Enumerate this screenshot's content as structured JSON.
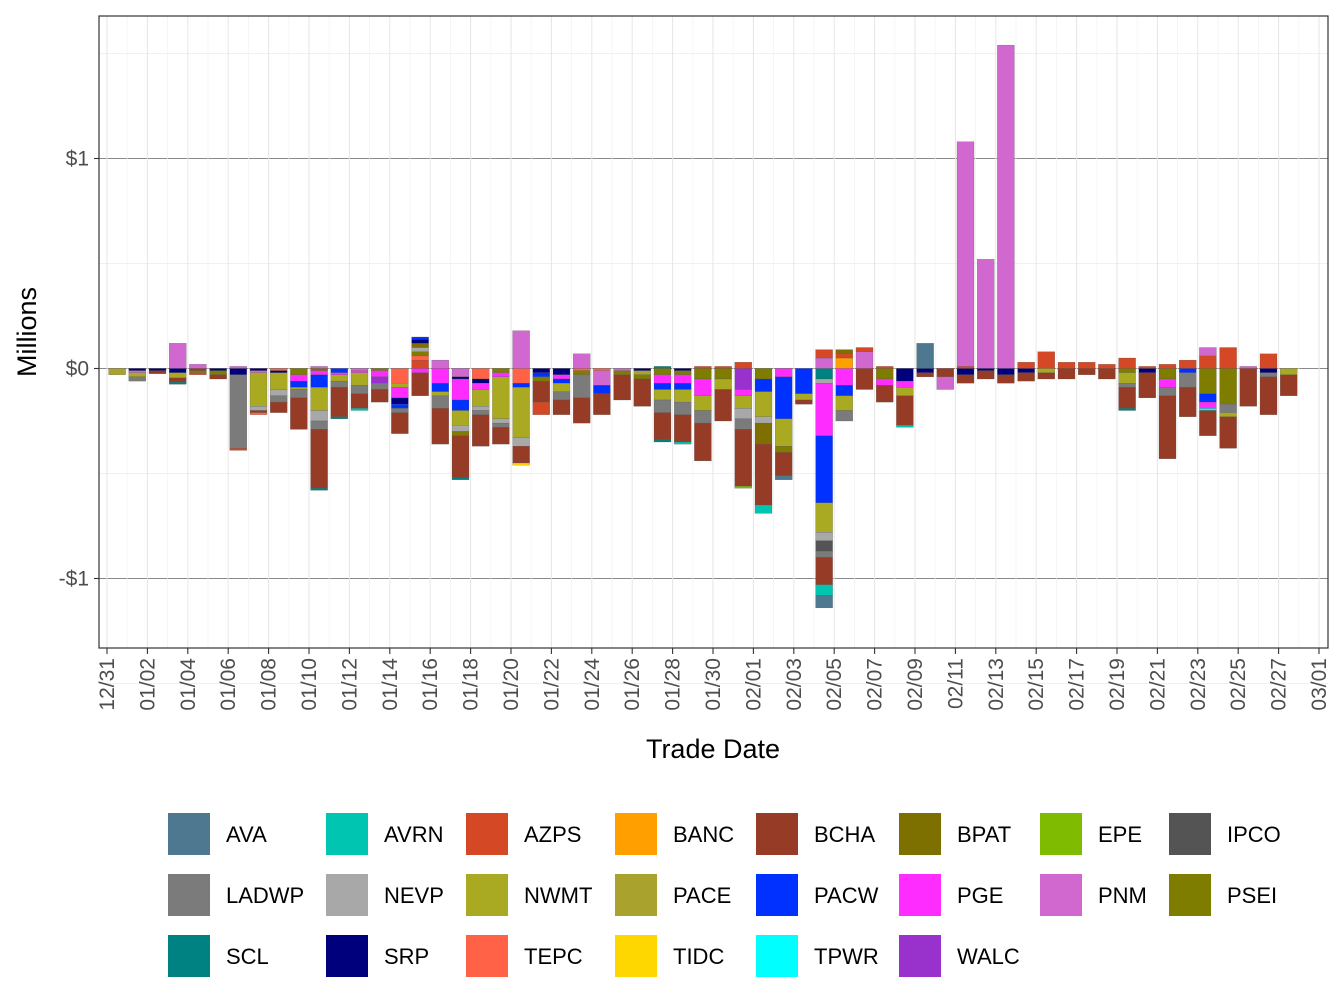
{
  "chart_data": {
    "type": "bar",
    "stacked": true,
    "xlabel": "Trade Date",
    "ylabel": "Millions",
    "ylim": [
      -1.34,
      1.68
    ],
    "y_ticks": [
      {
        "value": -1,
        "label": "-$1"
      },
      {
        "value": 0,
        "label": "$0"
      },
      {
        "value": 1,
        "label": "$1"
      }
    ],
    "x_ticks": [
      "12/31",
      "01/02",
      "01/04",
      "01/06",
      "01/08",
      "01/10",
      "01/12",
      "01/14",
      "01/16",
      "01/18",
      "01/20",
      "01/22",
      "01/24",
      "01/26",
      "01/28",
      "01/30",
      "02/01",
      "02/03",
      "02/05",
      "02/07",
      "02/09",
      "02/11",
      "02/13",
      "02/15",
      "02/17",
      "02/19",
      "02/21",
      "02/23",
      "02/25",
      "02/27",
      "03/01"
    ],
    "legend_position": "bottom",
    "colors": {
      "AVA": "#4e7890",
      "AVRN": "#00c6b1",
      "AZPS": "#d44826",
      "BANC": "#ffa000",
      "BCHA": "#963b25",
      "BPAT": "#7d7000",
      "EPE": "#7fbb00",
      "IPCO": "#545454",
      "LADWP": "#7b7b7b",
      "NEVP": "#a8a8a8",
      "NWMT": "#aaaa22",
      "PACE": "#a9a22d",
      "PACW": "#0031ff",
      "PGE": "#ff2cff",
      "PNM": "#d068cf",
      "PSEI": "#7e7d00",
      "SCL": "#008282",
      "SRP": "#00007c",
      "TEPC": "#ff6247",
      "TIDC": "#ffd700",
      "TPWR": "#00ffff",
      "WALC": "#9932cc"
    },
    "legend": [
      "AVA",
      "AVRN",
      "AZPS",
      "BANC",
      "BCHA",
      "BPAT",
      "EPE",
      "IPCO",
      "LADWP",
      "NEVP",
      "NWMT",
      "PACE",
      "PACW",
      "PGE",
      "PNM",
      "PSEI",
      "SCL",
      "SRP",
      "TEPC",
      "TIDC",
      "TPWR",
      "WALC"
    ],
    "days": [
      {
        "PACE": -0.03
      },
      {
        "SRP": -0.01,
        "PNM": -0.01,
        "NWMT": -0.02,
        "LADWP": -0.02
      },
      {
        "SRP": -0.01,
        "BCHA": -0.015
      },
      {
        "PNM": 0.12,
        "SRP": -0.02,
        "NWMT": -0.025,
        "BCHA": -0.02,
        "SCL": -0.01
      },
      {
        "PNM": 0.02,
        "BCHA": -0.01,
        "PSEI": -0.01,
        "AZPS": -0.01
      },
      {
        "SRP": -0.01,
        "PSEI": -0.02,
        "BCHA": -0.02
      },
      {
        "PNM": 0.01,
        "SRP": -0.03,
        "LADWP": -0.35,
        "AZPS": -0.01
      },
      {
        "SRP": -0.01,
        "PNM": -0.01,
        "NWMT": -0.16,
        "NEVP": -0.02,
        "BCHA": -0.01,
        "TEPC": -0.01
      },
      {
        "TEPC": -0.01,
        "SRP": -0.01,
        "NWMT": -0.08,
        "NEVP": -0.03,
        "LADWP": -0.03,
        "BCHA": -0.05
      },
      {
        "PSEI": -0.03,
        "PGE": -0.03,
        "PACW": -0.03,
        "NWMT": -0.01,
        "LADWP": -0.04,
        "BCHA": -0.15
      },
      {
        "PNM": 0.01,
        "BPAT": -0.01,
        "PGE": -0.02,
        "PACW": -0.06,
        "NWMT": -0.11,
        "NEVP": -0.05,
        "LADWP": -0.04,
        "BCHA": -0.28,
        "SCL": -0.01
      },
      {
        "PACW": -0.02,
        "PGE": -0.01,
        "NWMT": -0.03,
        "LADWP": -0.03,
        "BCHA": -0.14,
        "SCL": -0.01
      },
      {
        "PNM": -0.01,
        "PGE": -0.01,
        "NWMT": -0.06,
        "LADWP": -0.04,
        "BCHA": -0.07,
        "AVRN": -0.01
      },
      {
        "PSEI": -0.01,
        "PGE": -0.03,
        "WALC": -0.03,
        "LADWP": -0.03,
        "BCHA": -0.06
      },
      {
        "TEPC": -0.07,
        "NWMT": -0.02,
        "PGE": -0.05,
        "SRP": -0.03,
        "PACW": -0.02,
        "LADWP": -0.02,
        "BCHA": -0.1
      },
      {
        "AZPS": 0.04,
        "TEPC": 0.02,
        "PSEI": 0.02,
        "NEVP": 0.02,
        "BPAT": 0.02,
        "SRP": 0.02,
        "PACW": 0.01,
        "PGE": -0.02,
        "BCHA": -0.11
      },
      {
        "PNM": 0.04,
        "PGE": -0.07,
        "PACW": -0.04,
        "NWMT": -0.02,
        "LADWP": -0.06,
        "BCHA": -0.17
      },
      {
        "PNM": -0.04,
        "SRP": -0.01,
        "PGE": -0.1,
        "PACW": -0.05,
        "NWMT": -0.07,
        "NEVP": -0.03,
        "PSEI": -0.02,
        "BCHA": -0.2,
        "SCL": -0.01
      },
      {
        "TEPC": -0.05,
        "SRP": -0.02,
        "PGE": -0.03,
        "NWMT": -0.08,
        "NEVP": -0.02,
        "LADWP": -0.02,
        "BCHA": -0.15
      },
      {
        "PSEI": -0.02,
        "PGE": -0.02,
        "NWMT": -0.2,
        "NEVP": -0.02,
        "LADWP": -0.02,
        "BCHA": -0.08
      },
      {
        "PNM": 0.18,
        "TEPC": -0.07,
        "PACW": -0.02,
        "NWMT": -0.24,
        "NEVP": -0.04,
        "BCHA": -0.08,
        "TIDC": -0.01
      },
      {
        "SRP": -0.02,
        "PACW": -0.02,
        "PSEI": -0.02,
        "BCHA": -0.1,
        "AZPS": -0.06
      },
      {
        "SRP": -0.03,
        "PGE": -0.02,
        "PACW": -0.02,
        "NWMT": -0.04,
        "LADWP": -0.04,
        "BCHA": -0.07
      },
      {
        "PNM": 0.07,
        "TEPC": -0.01,
        "PSEI": -0.02,
        "LADWP": -0.11,
        "BCHA": -0.12
      },
      {
        "TEPC": -0.01,
        "PNM": -0.07,
        "PACW": -0.04,
        "BCHA": -0.1
      },
      {
        "PNM": -0.01,
        "PSEI": -0.02,
        "BCHA": -0.12
      },
      {
        "SRP": -0.01,
        "PACE": -0.02,
        "PSEI": -0.02,
        "BCHA": -0.13
      },
      {
        "SCL": 0.01,
        "PSEI": -0.03,
        "PGE": -0.04,
        "PACW": -0.03,
        "NWMT": -0.05,
        "LADWP": -0.06,
        "BCHA": -0.13,
        "SCL2": -0.01
      },
      {
        "SRP": -0.01,
        "PSEI": -0.02,
        "PGE": -0.04,
        "PACW": -0.03,
        "NWMT": -0.06,
        "LADWP": -0.06,
        "BCHA": -0.13,
        "AVRN": -0.01
      },
      {
        "AZPS": 0.01,
        "PSEI": -0.05,
        "PGE": -0.08,
        "NWMT": -0.07,
        "LADWP": -0.06,
        "BCHA": -0.18
      },
      {
        "AZPS": 0.01,
        "PSEI": -0.05,
        "NWMT": -0.05,
        "BCHA": -0.15
      },
      {
        "AZPS": 0.03,
        "WALC": -0.1,
        "PGE": -0.03,
        "NWMT": -0.06,
        "NEVP": -0.05,
        "LADWP": -0.05,
        "BCHA": -0.27,
        "EPE": -0.01
      },
      {
        "PSEI": -0.05,
        "PACW": -0.06,
        "NWMT": -0.12,
        "NEVP": -0.03,
        "BPAT": -0.1,
        "BCHA": -0.29,
        "AVRN": -0.04
      },
      {
        "PGE": -0.04,
        "PACW": -0.2,
        "NWMT": -0.13,
        "PSEI": -0.03,
        "BCHA": -0.11,
        "AVA": -0.02
      },
      {
        "PACW": -0.12,
        "NWMT": -0.03,
        "BCHA": -0.02
      },
      {
        "PNM": 0.05,
        "AZPS": 0.04,
        "SCL": -0.05,
        "NEVP": -0.02,
        "PGE": -0.25,
        "PACW": -0.32,
        "NWMT": -0.14,
        "NEVP2": -0.04,
        "IPCO": -0.05,
        "LADWP": -0.03,
        "BCHA": -0.13,
        "AVRN": -0.05,
        "AVA": -0.06
      },
      {
        "BANC": 0.05,
        "AZPS": 0.02,
        "BPAT": 0.02,
        "PGE": -0.08,
        "PACW": -0.05,
        "NWMT": -0.07,
        "LADWP": -0.05
      },
      {
        "PNM": 0.08,
        "AZPS": 0.02,
        "BCHA": -0.1
      },
      {
        "AZPS": 0.01,
        "PSEI": -0.05,
        "PGE": -0.03,
        "BCHA": -0.08
      },
      {
        "SRP": -0.06,
        "PGE": -0.03,
        "NWMT": -0.04,
        "BCHA": -0.14,
        "AVRN": -0.01
      },
      {
        "AVA": 0.12,
        "SRP": -0.02,
        "BCHA": -0.02
      },
      {
        "BCHA": -0.04,
        "PNM": -0.06
      },
      {
        "AZPS": 0.01,
        "PNM": 1.07,
        "SRP": -0.03,
        "BCHA": -0.04
      },
      {
        "PNM": 0.52,
        "SRP": -0.01,
        "BCHA": -0.04
      },
      {
        "PNM": 1.54,
        "SRP": -0.03,
        "BCHA": -0.04
      },
      {
        "AZPS": 0.03,
        "SRP": -0.02,
        "BCHA": -0.04
      },
      {
        "AZPS": 0.08,
        "NWMT": -0.02,
        "BCHA": -0.03
      },
      {
        "AZPS": 0.03,
        "BCHA": -0.05
      },
      {
        "AZPS": 0.03,
        "BCHA": -0.03
      },
      {
        "AZPS": 0.02,
        "BCHA": -0.05
      },
      {
        "AZPS": 0.05,
        "PSEI": -0.02,
        "NWMT": -0.05,
        "LADWP": -0.02,
        "BCHA": -0.1,
        "SCL": -0.01
      },
      {
        "AZPS": 0.01,
        "SRP": -0.02,
        "BCHA": -0.12
      },
      {
        "AZPS": 0.02,
        "PSEI": -0.05,
        "PGE": -0.04,
        "LADWP": -0.04,
        "BCHA": -0.3
      },
      {
        "AZPS": 0.04,
        "PACW": -0.02,
        "LADWP": -0.07,
        "BCHA": -0.14
      },
      {
        "AZPS": 0.06,
        "PNM": 0.04,
        "PSEI": -0.12,
        "PACW": -0.04,
        "PGE": -0.03,
        "TPWR": -0.01,
        "BCHA": -0.12
      },
      {
        "AZPS": 0.1,
        "PSEI": -0.17,
        "LADWP": -0.04,
        "NWMT": -0.02,
        "BCHA": -0.15
      },
      {
        "PNM": 0.01,
        "BCHA": -0.18
      },
      {
        "AZPS": 0.07,
        "SRP": -0.02,
        "LADWP": -0.02,
        "BCHA": -0.18
      },
      {
        "NWMT": -0.03,
        "BCHA": -0.1
      }
    ]
  }
}
